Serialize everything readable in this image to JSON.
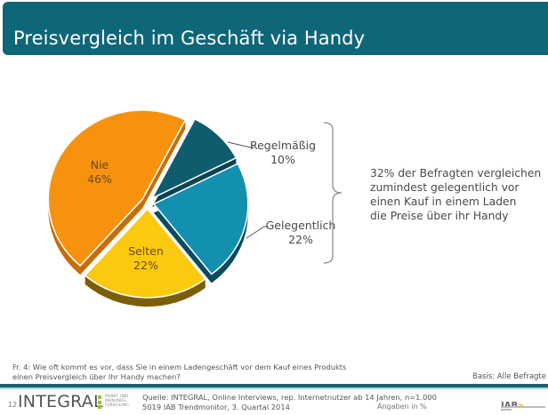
{
  "header": {
    "title": "Preisvergleich im Geschäft via Handy"
  },
  "chart_data": {
    "type": "pie",
    "title": "Preisvergleich im Geschäft via Handy",
    "unit": "%",
    "slices": [
      {
        "label": "Regelmäßig",
        "value": 10,
        "display": "10%",
        "color": "#0e5c6e",
        "side": "#0a4352",
        "label_position": "outside"
      },
      {
        "label": "Gelegentlich",
        "value": 22,
        "display": "22%",
        "color": "#1390b0",
        "side": "#0b4b5e",
        "label_position": "outside"
      },
      {
        "label": "Selten",
        "value": 22,
        "display": "22%",
        "color": "#fbc90f",
        "side": "#7d5e08",
        "label_position": "inside"
      },
      {
        "label": "Nie",
        "value": 46,
        "display": "46%",
        "color": "#f7920f",
        "side": "#c66e0a",
        "label_position": "inside"
      }
    ],
    "exploded": true,
    "style": "3d"
  },
  "annotation": {
    "bracket_covers": [
      "Regelmäßig",
      "Gelegentlich"
    ],
    "lines": [
      "32% der Befragten vergleichen",
      "zumindest gelegentlich vor",
      "einen Kauf in einem Laden",
      "die Preise über ihr Handy"
    ]
  },
  "footer": {
    "question": [
      "Fr. 4: Wie oft kommt es vor, dass Sie in einem Ladengeschäft vor dem Kauf eines Produkts",
      "einen Preisvergleich über Ihr Handy machen?"
    ],
    "basis": "Basis: Alle Befragte",
    "page_number": "12",
    "logo": {
      "name": "INTEGRAL",
      "sub": [
        "MARKT- UND",
        "MEINUNGS-",
        "FORSCHUNG"
      ],
      "accent": "#9bbd3c"
    },
    "source": [
      "Quelle: INTEGRAL, Online Interviews, rep. Internetnutzer ab 14 Jahren, n=1.000",
      "5019 IAB Trendmonitor, 3. Quartal 2014"
    ],
    "unit_note": "Angaben in %",
    "partner_logo": {
      "name": "IAB",
      "chevrons": "›››"
    }
  },
  "colors": {
    "header_bg": "#0f6678",
    "separator": "#1a5f6f",
    "separator_light": "#a9d3dc"
  }
}
